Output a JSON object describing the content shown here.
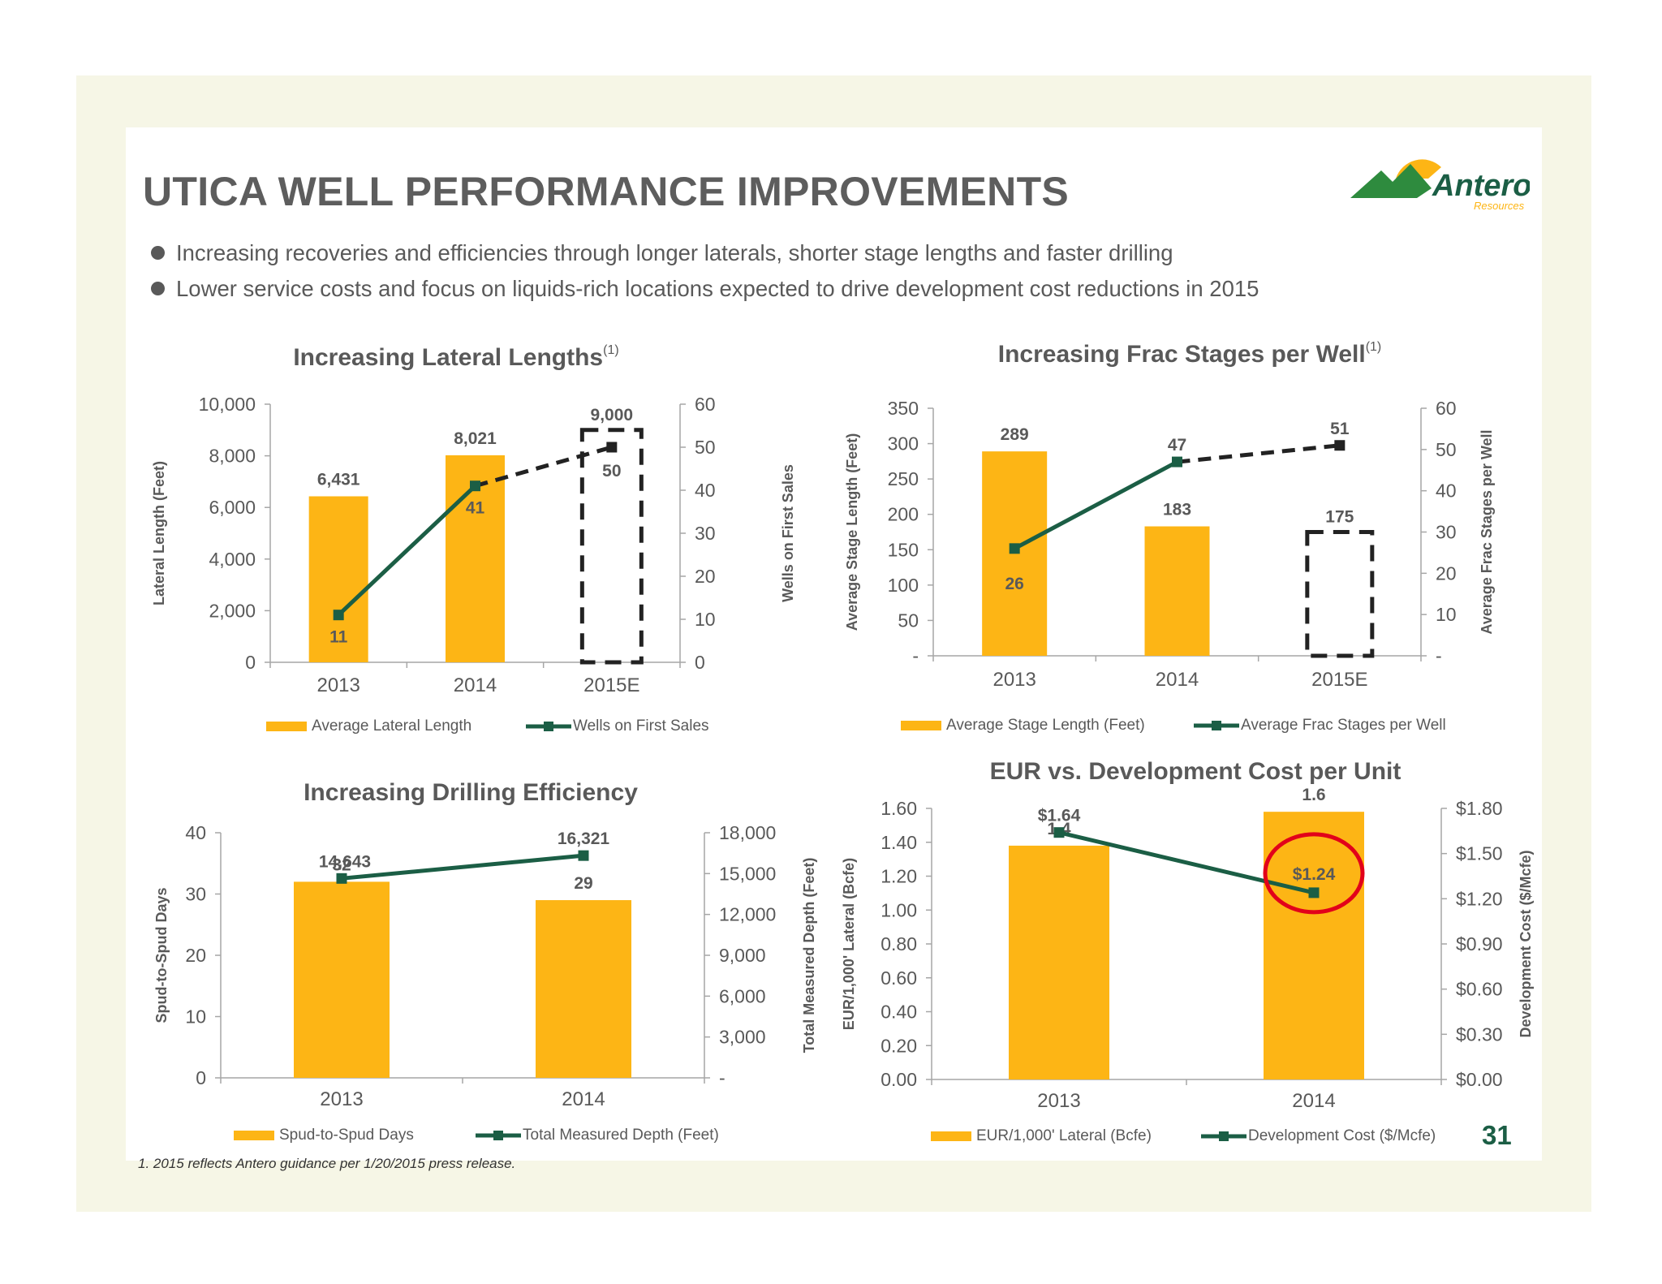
{
  "title": "UTICA WELL PERFORMANCE IMPROVEMENTS",
  "bullets": [
    "Increasing recoveries and efficiencies through longer laterals, shorter stage lengths and faster drilling",
    "Lower service costs and focus on liquids-rich locations expected to drive development cost reductions in 2015"
  ],
  "logo": {
    "name": "Antero",
    "tagline": "Resources",
    "icon": "mountain-sun-logo"
  },
  "page_number": "31",
  "footnote": "1. 2015 reflects Antero guidance per 1/20/2015 press release.",
  "colors": {
    "bar": "#fdb515",
    "line": "#1b5e45",
    "dashed": "#222222",
    "highlight": "#e2001a",
    "text": "#595959"
  },
  "chart_data": [
    {
      "id": "lateral",
      "type": "bar+line",
      "title": "Increasing Lateral Lengths",
      "title_sup": "(1)",
      "categories": [
        "2013",
        "2014",
        "2015E"
      ],
      "ylabel": "Lateral Length (Feet)",
      "y2label": "Wells on First Sales",
      "ylim": [
        0,
        10000
      ],
      "y2lim": [
        0,
        60
      ],
      "yticks": [
        "0",
        "2,000",
        "4,000",
        "6,000",
        "8,000",
        "10,000"
      ],
      "y2ticks": [
        "0",
        "10",
        "20",
        "30",
        "40",
        "50",
        "60"
      ],
      "bars": {
        "name": "Average Lateral Length",
        "values": [
          6431,
          8021,
          9000
        ],
        "labels": [
          "6,431",
          "8,021",
          "9,000"
        ],
        "estimated": [
          false,
          false,
          true
        ]
      },
      "line": {
        "name": "Wells on First Sales",
        "values": [
          11,
          41,
          50
        ],
        "labels": [
          "11",
          "41",
          "50"
        ],
        "dashed_last_segment": true
      },
      "legend": "bottom"
    },
    {
      "id": "frac",
      "type": "bar+line",
      "title": "Increasing Frac Stages per Well",
      "title_sup": "(1)",
      "categories": [
        "2013",
        "2014",
        "2015E"
      ],
      "ylabel": "Average Stage Length (Feet)",
      "y2label": "Average Frac Stages per Well",
      "ylim": [
        0,
        350
      ],
      "y2lim": [
        0,
        60
      ],
      "yticks": [
        "-",
        "50",
        "100",
        "150",
        "200",
        "250",
        "300",
        "350"
      ],
      "y2ticks": [
        "-",
        "10",
        "20",
        "30",
        "40",
        "50",
        "60"
      ],
      "bars": {
        "name": "Average Stage Length (Feet)",
        "values": [
          289,
          183,
          175
        ],
        "labels": [
          "289",
          "183",
          "175"
        ],
        "estimated": [
          false,
          false,
          true
        ]
      },
      "line": {
        "name": "Average Frac Stages per Well",
        "values": [
          26,
          47,
          51
        ],
        "labels": [
          "26",
          "47",
          "51"
        ],
        "dashed_last_segment": true
      },
      "legend": "bottom"
    },
    {
      "id": "drilling",
      "type": "bar+line",
      "title": "Increasing Drilling Efficiency",
      "title_sup": "",
      "categories": [
        "2013",
        "2014"
      ],
      "ylabel": "Spud-to-Spud Days",
      "y2label": "Total Measured Depth (Feet)",
      "ylim": [
        0,
        40
      ],
      "y2lim": [
        0,
        18000
      ],
      "yticks": [
        "0",
        "10",
        "20",
        "30",
        "40"
      ],
      "y2ticks": [
        "-",
        "3,000",
        "6,000",
        "9,000",
        "12,000",
        "15,000",
        "18,000"
      ],
      "bars": {
        "name": "Spud-to-Spud Days",
        "values": [
          32,
          29
        ],
        "labels": [
          "32",
          "29"
        ],
        "estimated": [
          false,
          false
        ]
      },
      "line": {
        "name": "Total Measured Depth (Feet)",
        "values": [
          14643,
          16321
        ],
        "labels": [
          "14,643",
          "16,321"
        ],
        "dashed_last_segment": false
      },
      "legend": "bottom"
    },
    {
      "id": "eur",
      "type": "bar+line",
      "title": "EUR vs. Development Cost per Unit",
      "title_sup": "",
      "categories": [
        "2013",
        "2014"
      ],
      "ylabel": "EUR/1,000' Lateral (Bcfe)",
      "y2label": "Development Cost ($/Mcfe)",
      "ylim": [
        0,
        1.6
      ],
      "y2lim": [
        0,
        1.8
      ],
      "yticks": [
        "0.00",
        "0.20",
        "0.40",
        "0.60",
        "0.80",
        "1.00",
        "1.20",
        "1.40",
        "1.60"
      ],
      "y2ticks": [
        "$0.00",
        "$0.30",
        "$0.60",
        "$0.90",
        "$1.20",
        "$1.50",
        "$1.80"
      ],
      "bars": {
        "name": "EUR/1,000' Lateral (Bcfe)",
        "values": [
          1.38,
          1.58
        ],
        "labels": [
          "1.4",
          "1.6"
        ],
        "estimated": [
          false,
          false
        ]
      },
      "line": {
        "name": "Development Cost ($/Mcfe)",
        "values": [
          1.64,
          1.24
        ],
        "labels": [
          "$1.64",
          "$1.24"
        ],
        "dashed_last_segment": false,
        "highlight_index": 1
      },
      "legend": "bottom"
    }
  ]
}
